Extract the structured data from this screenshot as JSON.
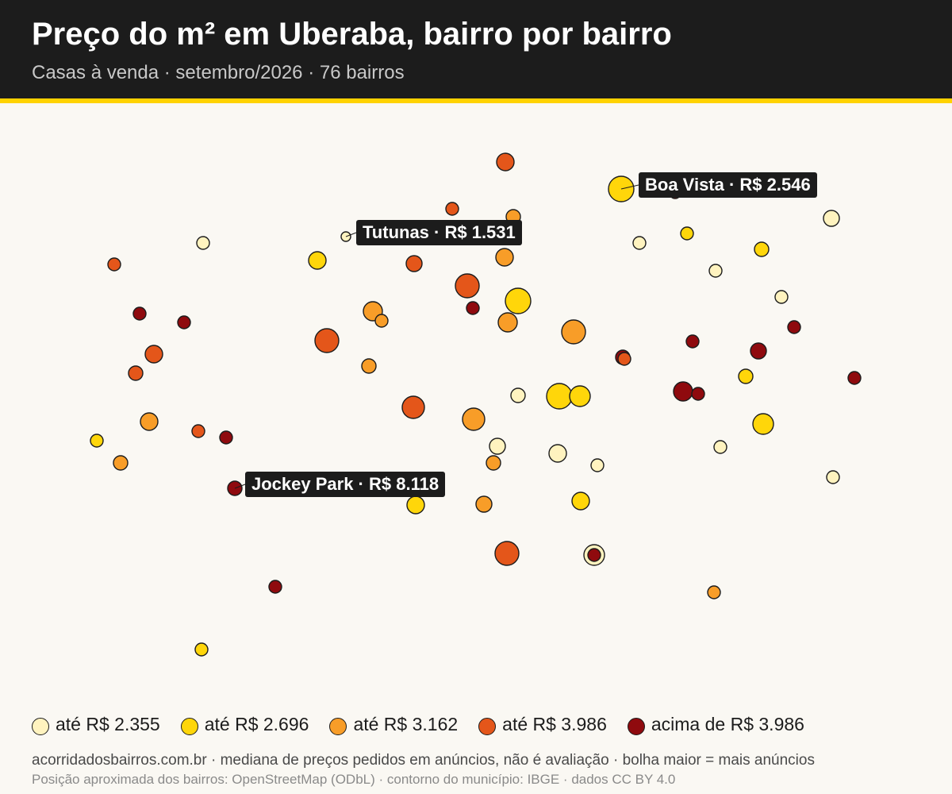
{
  "header": {
    "title": "Preço do m² em Uberaba, bairro por bairro",
    "subtitle": "Casas à venda · setembro/2026 · 76 bairros"
  },
  "colors": {
    "header_bg": "#1c1c1c",
    "accent": "#ffd200",
    "background": "#faf8f3",
    "tiers": [
      "#fff3bf",
      "#ffd60a",
      "#f89d28",
      "#e4561a",
      "#8f0a0e"
    ]
  },
  "legend": [
    {
      "label": "até R$ 2.355",
      "color": "#fff3bf"
    },
    {
      "label": "até R$ 2.696",
      "color": "#ffd60a"
    },
    {
      "label": "até R$ 3.162",
      "color": "#f89d28"
    },
    {
      "label": "até R$ 3.986",
      "color": "#e4561a"
    },
    {
      "label": "acima de R$ 3.986",
      "color": "#8f0a0e"
    }
  ],
  "callouts": [
    {
      "label": "Boa Vista · R$ 2.546",
      "tier": 1
    },
    {
      "label": "Tutunas · R$ 1.531",
      "tier": 0
    },
    {
      "label": "Jockey Park · R$ 8.118",
      "tier": 4
    }
  ],
  "footer": {
    "line1": "acorridadosbairros.com.br · mediana de preços pedidos em anúncios, não é avaliação · bolha maior = mais anúncios",
    "line2": "Posição aproximada dos bairros: OpenStreetMap (ODbL) · contorno do município: IBGE · dados CC BY 4.0"
  }
}
